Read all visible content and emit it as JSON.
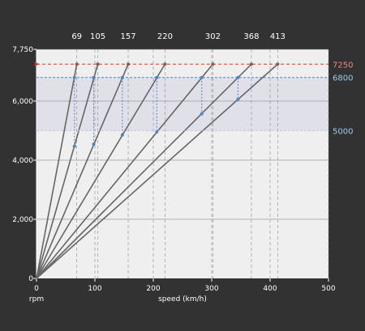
{
  "colors": {
    "background": "#323232",
    "plot_bg": "#efefef",
    "band_fill": "#e0e0e8",
    "grid": "#8c8c8c",
    "gear_line": "#666666",
    "shift_line": "#4a86c8",
    "redline": "#d83a2a",
    "axis_text": "#ffffff",
    "redline_text": "#e88a84",
    "shift_text": "#9cc8ec"
  },
  "chart_data": {
    "type": "line",
    "xlabel": "speed (km/h)",
    "ylabel": "rpm",
    "xlim": [
      0,
      500
    ],
    "ylim": [
      0,
      7750
    ],
    "x_ticks": [
      0,
      100,
      200,
      300,
      400,
      500
    ],
    "x_tick_labels": [
      "0",
      "100",
      "200",
      "300",
      "400",
      "500"
    ],
    "y_ticks": [
      0,
      2000,
      4000,
      6000,
      7750
    ],
    "y_tick_labels": [
      "0",
      "2,000",
      "4,000",
      "6,000",
      "7,750"
    ],
    "grid": true,
    "redline_rpm": 7250,
    "redline_label": "7250",
    "shift_band": [
      5000,
      6800
    ],
    "shift_band_labels": [
      "6800",
      "5000"
    ],
    "gears": [
      {
        "top_speed": 69,
        "label": "69"
      },
      {
        "top_speed": 105,
        "label": "105"
      },
      {
        "top_speed": 157,
        "label": "157"
      },
      {
        "top_speed": 220,
        "label": "220"
      },
      {
        "top_speed": 302,
        "label": "302"
      },
      {
        "top_speed": 368,
        "label": "368"
      },
      {
        "top_speed": 413,
        "label": "413"
      }
    ],
    "shift_points": [
      {
        "speed": 65,
        "from_rpm": 6800,
        "to_rpm": 4470
      },
      {
        "speed": 98,
        "from_rpm": 6800,
        "to_rpm": 4540
      },
      {
        "speed": 147,
        "from_rpm": 6800,
        "to_rpm": 4850
      },
      {
        "speed": 206,
        "from_rpm": 6800,
        "to_rpm": 4960
      },
      {
        "speed": 283,
        "from_rpm": 6800,
        "to_rpm": 5570
      },
      {
        "speed": 345,
        "from_rpm": 6800,
        "to_rpm": 6060
      }
    ]
  }
}
